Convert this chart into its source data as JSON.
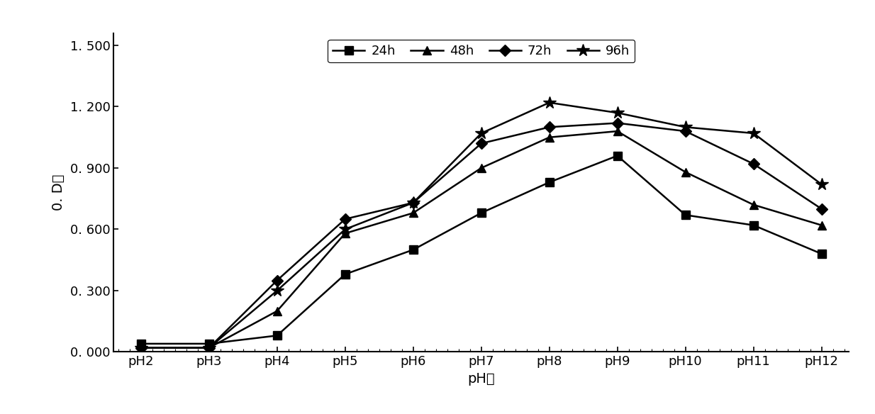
{
  "x_labels": [
    "pH2",
    "pH3",
    "pH4",
    "pH5",
    "pH6",
    "pH7",
    "pH8",
    "pH9",
    "pH10",
    "pH11",
    "pH12"
  ],
  "xlabel": "pH值",
  "ylabel": "0. D值",
  "ylim": [
    0.0,
    1.56
  ],
  "yticks": [
    0.0,
    0.3,
    0.6,
    0.9,
    1.2,
    1.5
  ],
  "ytick_labels": [
    "0. 000",
    "0. 300",
    "0. 600",
    "0. 900",
    "1. 200",
    "1. 500"
  ],
  "series": [
    {
      "label": "24h",
      "marker": "s",
      "color": "#000000",
      "values": [
        0.04,
        0.04,
        0.08,
        0.38,
        0.5,
        0.68,
        0.83,
        0.96,
        0.67,
        0.62,
        0.48
      ]
    },
    {
      "label": "48h",
      "marker": "^",
      "color": "#000000",
      "values": [
        0.02,
        0.02,
        0.2,
        0.58,
        0.68,
        0.9,
        1.05,
        1.08,
        0.88,
        0.72,
        0.62
      ]
    },
    {
      "label": "72h",
      "marker": "D",
      "color": "#000000",
      "values": [
        0.02,
        0.02,
        0.35,
        0.65,
        0.73,
        1.02,
        1.1,
        1.12,
        1.08,
        0.92,
        0.7
      ]
    },
    {
      "label": "96h",
      "marker": "*",
      "color": "#000000",
      "values": [
        0.02,
        0.02,
        0.3,
        0.6,
        0.73,
        1.07,
        1.22,
        1.17,
        1.1,
        1.07,
        0.82
      ]
    }
  ],
  "axis_fontsize": 14,
  "tick_fontsize": 13,
  "legend_fontsize": 13,
  "linewidth": 1.8,
  "markersize": 9,
  "background_color": "#ffffff",
  "figure_width": 12.34,
  "figure_height": 5.84,
  "dpi": 100
}
